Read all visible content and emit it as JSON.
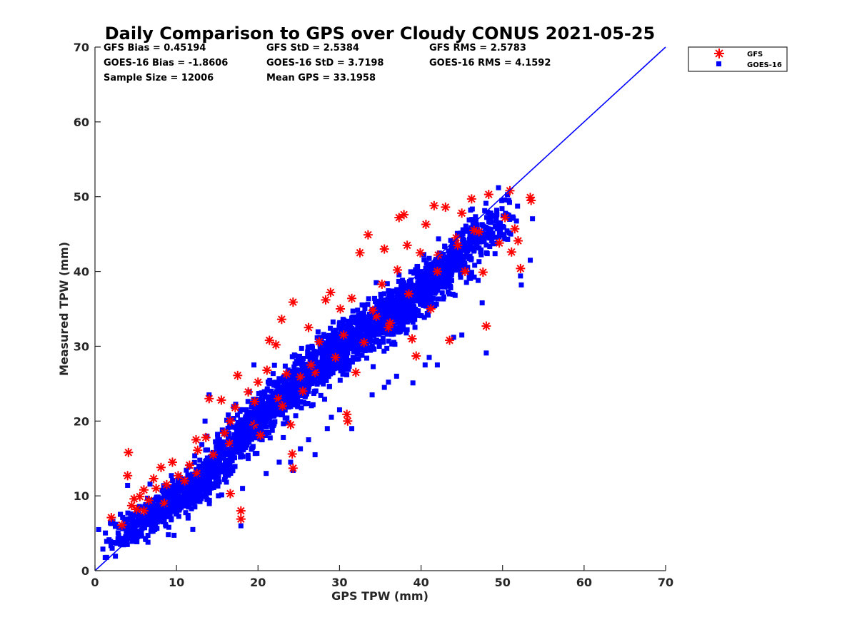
{
  "chart_data": {
    "type": "scatter",
    "title": "Daily Comparison to GPS over Cloudy CONUS 2021-05-25",
    "xlabel": "GPS TPW (mm)",
    "ylabel": "Measured TPW (mm)",
    "xlim": [
      0,
      70
    ],
    "ylim": [
      0,
      70
    ],
    "xticks": [
      "0",
      "10",
      "20",
      "30",
      "40",
      "50",
      "60",
      "70"
    ],
    "yticks": [
      "0",
      "10",
      "20",
      "30",
      "40",
      "50",
      "60",
      "70"
    ],
    "grid": false,
    "legend_position": "outside-top-right",
    "reference_line": {
      "type": "1:1",
      "color": "#0000ff",
      "x": [
        0,
        70
      ],
      "y": [
        0,
        70
      ]
    },
    "stats": {
      "gfs_bias": "GFS Bias = 0.45194",
      "gfs_std": "GFS StD = 2.5384",
      "gfs_rms": "GFS RMS = 2.5783",
      "goes_bias": "GOES-16 Bias = -1.8606",
      "goes_std": "GOES-16 StD = 3.7198",
      "goes_rms": "GOES-16 RMS = 4.1592",
      "sample_size": "Sample Size = 12006",
      "mean_gps": "Mean GPS = 33.1958"
    },
    "series": [
      {
        "name": "GFS",
        "marker": "asterisk",
        "color": "#ff0000",
        "points": [
          [
            2.0,
            7.1
          ],
          [
            3.3,
            6.1
          ],
          [
            4.0,
            12.7
          ],
          [
            4.1,
            15.8
          ],
          [
            4.5,
            8.7
          ],
          [
            4.8,
            9.6
          ],
          [
            5.1,
            8.2
          ],
          [
            5.5,
            9.9
          ],
          [
            6.0,
            10.8
          ],
          [
            6.6,
            9.4
          ],
          [
            7.2,
            12.3
          ],
          [
            7.5,
            11.0
          ],
          [
            8.1,
            13.8
          ],
          [
            8.8,
            11.5
          ],
          [
            9.5,
            14.5
          ],
          [
            10.2,
            12.7
          ],
          [
            11.6,
            14.1
          ],
          [
            12.6,
            16.1
          ],
          [
            12.4,
            17.5
          ],
          [
            13.6,
            17.8
          ],
          [
            14.0,
            23.0
          ],
          [
            15.5,
            22.8
          ],
          [
            15.9,
            18.4
          ],
          [
            16.6,
            20.0
          ],
          [
            17.2,
            21.8
          ],
          [
            17.5,
            26.1
          ],
          [
            17.9,
            8.0
          ],
          [
            17.9,
            6.9
          ],
          [
            16.6,
            10.3
          ],
          [
            18.8,
            23.9
          ],
          [
            19.6,
            22.6
          ],
          [
            20.0,
            25.2
          ],
          [
            20.3,
            18.1
          ],
          [
            21.1,
            26.8
          ],
          [
            21.4,
            30.8
          ],
          [
            22.2,
            30.2
          ],
          [
            22.9,
            33.6
          ],
          [
            23.5,
            26.3
          ],
          [
            24.0,
            19.5
          ],
          [
            24.2,
            15.6
          ],
          [
            24.3,
            13.7
          ],
          [
            24.3,
            35.9
          ],
          [
            25.2,
            25.9
          ],
          [
            26.2,
            32.5
          ],
          [
            27.5,
            30.6
          ],
          [
            28.3,
            36.2
          ],
          [
            28.9,
            37.2
          ],
          [
            30.1,
            35.0
          ],
          [
            30.9,
            20.9
          ],
          [
            31.0,
            20.0
          ],
          [
            31.5,
            36.4
          ],
          [
            32.5,
            42.5
          ],
          [
            32.0,
            26.5
          ],
          [
            33.5,
            44.9
          ],
          [
            34.1,
            34.8
          ],
          [
            35.2,
            38.3
          ],
          [
            35.5,
            43.0
          ],
          [
            36.2,
            33.1
          ],
          [
            37.1,
            40.2
          ],
          [
            37.3,
            47.2
          ],
          [
            37.9,
            47.6
          ],
          [
            38.3,
            43.5
          ],
          [
            38.9,
            31.0
          ],
          [
            39.4,
            28.7
          ],
          [
            39.9,
            42.5
          ],
          [
            40.6,
            46.3
          ],
          [
            41.2,
            35.0
          ],
          [
            41.6,
            48.8
          ],
          [
            42.1,
            42.2
          ],
          [
            43.0,
            48.6
          ],
          [
            43.5,
            30.8
          ],
          [
            44.3,
            44.5
          ],
          [
            45.0,
            47.8
          ],
          [
            45.4,
            40.0
          ],
          [
            46.2,
            49.7
          ],
          [
            47.1,
            45.3
          ],
          [
            47.6,
            39.9
          ],
          [
            48.0,
            32.7
          ],
          [
            48.3,
            50.3
          ],
          [
            49.6,
            43.8
          ],
          [
            50.3,
            47.2
          ],
          [
            50.9,
            50.8
          ],
          [
            51.1,
            42.6
          ],
          [
            51.5,
            45.7
          ],
          [
            51.9,
            44.1
          ],
          [
            52.2,
            40.4
          ],
          [
            53.4,
            49.9
          ],
          [
            53.5,
            49.5
          ],
          [
            36.0,
            32.5
          ],
          [
            33.0,
            30.5
          ],
          [
            29.5,
            28.5
          ],
          [
            27.0,
            26.5
          ],
          [
            25.5,
            24.0
          ],
          [
            23.0,
            22.0
          ],
          [
            19.5,
            19.5
          ],
          [
            14.5,
            15.5
          ],
          [
            11.0,
            12.0
          ],
          [
            8.5,
            9.0
          ],
          [
            6.0,
            8.0
          ],
          [
            42.0,
            40.0
          ],
          [
            38.5,
            37.0
          ],
          [
            44.5,
            43.5
          ],
          [
            46.5,
            45.5
          ],
          [
            34.5,
            34.0
          ],
          [
            30.5,
            31.5
          ],
          [
            26.5,
            27.5
          ],
          [
            22.5,
            23.0
          ],
          [
            16.5,
            17.0
          ],
          [
            12.5,
            13.0
          ]
        ]
      },
      {
        "name": "GOES-16",
        "marker": "square",
        "color": "#0000ff",
        "clusters": [
          {
            "x1": 3.5,
            "y1": 5.0,
            "x2": 13.5,
            "y2": 12.0,
            "w": 4.5,
            "n": 520
          },
          {
            "x1": 10.0,
            "y1": 9.0,
            "x2": 21.0,
            "y2": 21.0,
            "w": 5.0,
            "n": 520
          },
          {
            "x1": 18.5,
            "y1": 19.0,
            "x2": 31.0,
            "y2": 31.0,
            "w": 5.5,
            "n": 620
          },
          {
            "x1": 25.0,
            "y1": 25.5,
            "x2": 40.0,
            "y2": 37.5,
            "w": 6.0,
            "n": 820
          },
          {
            "x1": 35.0,
            "y1": 32.5,
            "x2": 49.0,
            "y2": 46.5,
            "w": 5.5,
            "n": 720
          }
        ],
        "points": [
          [
            2.0,
            6.3
          ],
          [
            3.5,
            4.0
          ],
          [
            4.0,
            11.4
          ],
          [
            6.5,
            3.8
          ],
          [
            9.0,
            4.8
          ],
          [
            12.0,
            5.5
          ],
          [
            14.0,
            23.5
          ],
          [
            13.5,
            20.0
          ],
          [
            17.9,
            6.0
          ],
          [
            18.1,
            11.0
          ],
          [
            19.5,
            27.5
          ],
          [
            21.0,
            13.0
          ],
          [
            22.6,
            14.5
          ],
          [
            24.0,
            14.5
          ],
          [
            24.3,
            13.4
          ],
          [
            25.2,
            16.3
          ],
          [
            26.2,
            17.5
          ],
          [
            27.0,
            15.5
          ],
          [
            28.5,
            19.0
          ],
          [
            29.0,
            20.5
          ],
          [
            30.0,
            21.5
          ],
          [
            31.5,
            19.0
          ],
          [
            33.0,
            35.5
          ],
          [
            34.0,
            23.5
          ],
          [
            34.5,
            38.5
          ],
          [
            35.5,
            24.5
          ],
          [
            36.0,
            25.2
          ],
          [
            37.0,
            26.0
          ],
          [
            39.0,
            25.1
          ],
          [
            40.5,
            27.5
          ],
          [
            41.0,
            28.5
          ],
          [
            42.0,
            27.5
          ],
          [
            43.5,
            37.0
          ],
          [
            44.0,
            31.2
          ],
          [
            45.0,
            31.5
          ],
          [
            47.0,
            38.8
          ],
          [
            47.5,
            35.8
          ],
          [
            48.0,
            29.1
          ],
          [
            49.5,
            51.2
          ],
          [
            51.0,
            45.0
          ],
          [
            52.2,
            39.4
          ],
          [
            52.3,
            38.2
          ],
          [
            53.4,
            41.5
          ]
        ]
      }
    ]
  }
}
